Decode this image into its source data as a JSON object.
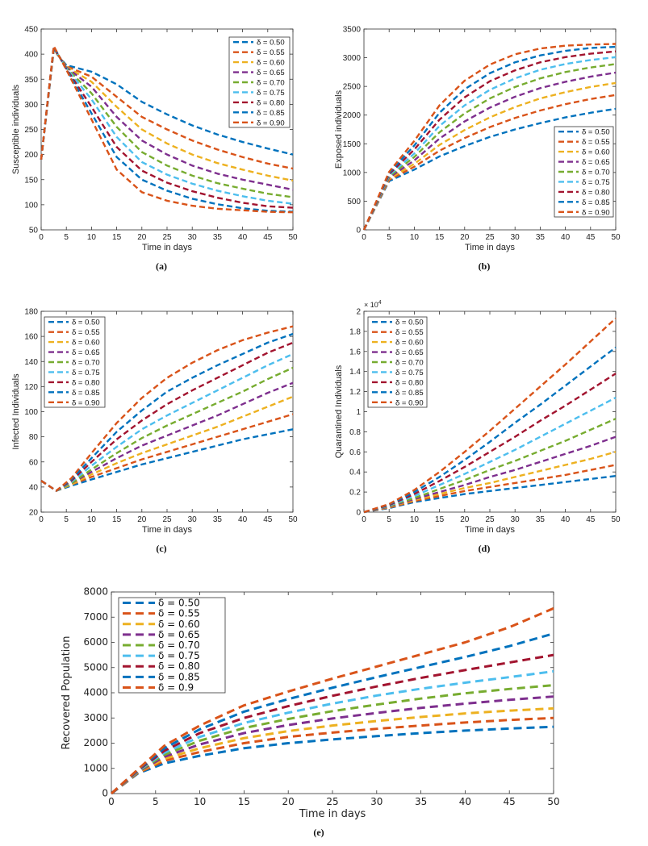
{
  "colors": [
    "#0072BD",
    "#D95319",
    "#EDB120",
    "#7E2F8E",
    "#77AC30",
    "#4DBEEE",
    "#A2142F",
    "#0072BD",
    "#D95319"
  ],
  "chart_data": [
    {
      "id": "a",
      "type": "line",
      "caption": "(a)",
      "xlabel": "Time in days",
      "ylabel": "Susceptible individuals",
      "xlim": [
        0,
        50
      ],
      "ylim": [
        50,
        450
      ],
      "xticks": [
        0,
        5,
        10,
        15,
        20,
        25,
        30,
        35,
        40,
        45,
        50
      ],
      "yticks": [
        50,
        100,
        150,
        200,
        250,
        300,
        350,
        400,
        450
      ],
      "legend_position": "top-right",
      "x": [
        0,
        2.5,
        5,
        10,
        15,
        20,
        25,
        30,
        35,
        40,
        45,
        50
      ],
      "series": [
        {
          "name": "δ = 0.50",
          "values": [
            190,
            408,
            378,
            365,
            340,
            305,
            280,
            258,
            240,
            225,
            212,
            200
          ]
        },
        {
          "name": "δ = 0.55",
          "values": [
            190,
            409,
            376,
            355,
            315,
            275,
            250,
            228,
            210,
            195,
            182,
            172
          ]
        },
        {
          "name": "δ = 0.60",
          "values": [
            190,
            410,
            375,
            345,
            295,
            250,
            222,
            200,
            183,
            170,
            158,
            148
          ]
        },
        {
          "name": "δ = 0.65",
          "values": [
            190,
            411,
            374,
            335,
            275,
            228,
            200,
            178,
            162,
            150,
            140,
            130
          ]
        },
        {
          "name": "δ = 0.70",
          "values": [
            190,
            412,
            373,
            322,
            255,
            205,
            178,
            158,
            143,
            132,
            122,
            115
          ]
        },
        {
          "name": "δ = 0.75",
          "values": [
            190,
            413,
            372,
            310,
            235,
            185,
            160,
            142,
            128,
            117,
            108,
            102
          ]
        },
        {
          "name": "δ = 0.80",
          "values": [
            190,
            414,
            371,
            295,
            215,
            168,
            144,
            127,
            114,
            104,
            97,
            94
          ]
        },
        {
          "name": "δ = 0.85",
          "values": [
            190,
            415,
            370,
            282,
            195,
            150,
            128,
            112,
            101,
            93,
            88,
            86
          ]
        },
        {
          "name": "δ = 0.90",
          "values": [
            190,
            416,
            369,
            270,
            170,
            125,
            108,
            98,
            92,
            89,
            86,
            85
          ]
        }
      ]
    },
    {
      "id": "b",
      "type": "line",
      "caption": "(b)",
      "xlabel": "Time in days",
      "ylabel": "Exposed individuals",
      "xlim": [
        0,
        50
      ],
      "ylim": [
        0,
        3500
      ],
      "xticks": [
        0,
        5,
        10,
        15,
        20,
        25,
        30,
        35,
        40,
        45,
        50
      ],
      "yticks": [
        0,
        500,
        1000,
        1500,
        2000,
        2500,
        3000,
        3500
      ],
      "legend_position": "bottom-right",
      "x": [
        0,
        5,
        10,
        15,
        20,
        25,
        30,
        35,
        40,
        45,
        50
      ],
      "series": [
        {
          "name": "δ = 0.50",
          "values": [
            0,
            850,
            1050,
            1280,
            1460,
            1620,
            1750,
            1860,
            1960,
            2040,
            2110
          ]
        },
        {
          "name": "δ = 0.55",
          "values": [
            0,
            870,
            1100,
            1380,
            1600,
            1790,
            1950,
            2080,
            2190,
            2280,
            2350
          ]
        },
        {
          "name": "δ = 0.60",
          "values": [
            0,
            890,
            1150,
            1480,
            1740,
            1960,
            2140,
            2290,
            2400,
            2490,
            2560
          ]
        },
        {
          "name": "δ = 0.65",
          "values": [
            0,
            910,
            1210,
            1590,
            1890,
            2130,
            2320,
            2470,
            2580,
            2670,
            2740
          ]
        },
        {
          "name": "δ = 0.70",
          "values": [
            0,
            930,
            1270,
            1700,
            2030,
            2290,
            2490,
            2640,
            2750,
            2830,
            2890
          ]
        },
        {
          "name": "δ = 0.75",
          "values": [
            0,
            950,
            1330,
            1810,
            2170,
            2440,
            2640,
            2790,
            2890,
            2960,
            3010
          ]
        },
        {
          "name": "δ = 0.80",
          "values": [
            0,
            970,
            1400,
            1920,
            2310,
            2590,
            2780,
            2920,
            3010,
            3070,
            3110
          ]
        },
        {
          "name": "δ = 0.85",
          "values": [
            0,
            990,
            1470,
            2040,
            2450,
            2730,
            2920,
            3040,
            3120,
            3170,
            3190
          ]
        },
        {
          "name": "δ = 0.90",
          "values": [
            0,
            1010,
            1550,
            2170,
            2600,
            2880,
            3060,
            3160,
            3210,
            3230,
            3240
          ]
        }
      ]
    },
    {
      "id": "c",
      "type": "line",
      "caption": "(c)",
      "xlabel": "Time in days",
      "ylabel": "Infected Individuals",
      "xlim": [
        0,
        50
      ],
      "ylim": [
        20,
        180
      ],
      "xticks": [
        0,
        5,
        10,
        15,
        20,
        25,
        30,
        35,
        40,
        45,
        50
      ],
      "yticks": [
        20,
        40,
        60,
        80,
        100,
        120,
        140,
        160,
        180
      ],
      "legend_position": "top-left",
      "x": [
        0,
        3,
        6,
        10,
        15,
        20,
        25,
        30,
        35,
        40,
        45,
        50
      ],
      "series": [
        {
          "name": "δ = 0.50",
          "values": [
            45,
            37,
            41,
            46,
            52,
            58,
            63,
            68,
            73,
            78,
            82,
            86
          ]
        },
        {
          "name": "δ = 0.55",
          "values": [
            45,
            37,
            42,
            48,
            55,
            62,
            68,
            74,
            80,
            86,
            92,
            98
          ]
        },
        {
          "name": "δ = 0.60",
          "values": [
            45,
            37,
            42,
            50,
            59,
            67,
            74,
            81,
            88,
            96,
            104,
            112
          ]
        },
        {
          "name": "δ = 0.65",
          "values": [
            45,
            37,
            43,
            52,
            63,
            73,
            81,
            89,
            97,
            106,
            115,
            123
          ]
        },
        {
          "name": "δ = 0.70",
          "values": [
            45,
            37,
            43,
            54,
            67,
            79,
            89,
            98,
            107,
            116,
            126,
            135
          ]
        },
        {
          "name": "δ = 0.75",
          "values": [
            45,
            37,
            44,
            57,
            72,
            86,
            97,
            107,
            117,
            127,
            137,
            146
          ]
        },
        {
          "name": "δ = 0.80",
          "values": [
            45,
            37,
            45,
            60,
            78,
            93,
            106,
            117,
            127,
            137,
            147,
            155
          ]
        },
        {
          "name": "δ = 0.85",
          "values": [
            45,
            37,
            46,
            63,
            84,
            101,
            116,
            127,
            137,
            146,
            155,
            162
          ]
        },
        {
          "name": "δ = 0.90",
          "values": [
            45,
            37,
            47,
            67,
            91,
            111,
            127,
            139,
            149,
            157,
            163,
            168
          ]
        }
      ]
    },
    {
      "id": "d",
      "type": "line",
      "caption": "(d)",
      "xlabel": "Time in days",
      "ylabel": "Quarantined Individuals",
      "exponent": "× 10",
      "exponent_power": "4",
      "xlim": [
        0,
        50
      ],
      "ylim": [
        0,
        2
      ],
      "xticks": [
        0,
        5,
        10,
        15,
        20,
        25,
        30,
        35,
        40,
        45,
        50
      ],
      "yticks": [
        0,
        0.2,
        0.4,
        0.6,
        0.8,
        1,
        1.2,
        1.4,
        1.6,
        1.8,
        2
      ],
      "legend_position": "top-left",
      "x": [
        0,
        5,
        10,
        15,
        20,
        25,
        30,
        35,
        40,
        45,
        50
      ],
      "series": [
        {
          "name": "δ = 0.50",
          "values": [
            0,
            0.04,
            0.1,
            0.14,
            0.18,
            0.21,
            0.24,
            0.27,
            0.3,
            0.33,
            0.36
          ]
        },
        {
          "name": "δ = 0.55",
          "values": [
            0,
            0.045,
            0.11,
            0.16,
            0.21,
            0.25,
            0.29,
            0.33,
            0.37,
            0.42,
            0.47
          ]
        },
        {
          "name": "δ = 0.60",
          "values": [
            0,
            0.05,
            0.12,
            0.18,
            0.24,
            0.29,
            0.35,
            0.41,
            0.47,
            0.53,
            0.6
          ]
        },
        {
          "name": "δ = 0.65",
          "values": [
            0,
            0.055,
            0.13,
            0.2,
            0.27,
            0.35,
            0.42,
            0.5,
            0.58,
            0.66,
            0.75
          ]
        },
        {
          "name": "δ = 0.70",
          "values": [
            0,
            0.06,
            0.14,
            0.23,
            0.32,
            0.42,
            0.51,
            0.61,
            0.71,
            0.82,
            0.93
          ]
        },
        {
          "name": "δ = 0.75",
          "values": [
            0,
            0.065,
            0.16,
            0.27,
            0.38,
            0.5,
            0.62,
            0.75,
            0.88,
            1.01,
            1.14
          ]
        },
        {
          "name": "δ = 0.80",
          "values": [
            0,
            0.07,
            0.18,
            0.31,
            0.45,
            0.6,
            0.75,
            0.91,
            1.06,
            1.22,
            1.38
          ]
        },
        {
          "name": "δ = 0.85",
          "values": [
            0,
            0.075,
            0.2,
            0.35,
            0.52,
            0.7,
            0.89,
            1.07,
            1.26,
            1.45,
            1.64
          ]
        },
        {
          "name": "δ = 0.90",
          "values": [
            0,
            0.08,
            0.22,
            0.4,
            0.6,
            0.81,
            1.03,
            1.25,
            1.47,
            1.7,
            1.93
          ]
        }
      ]
    },
    {
      "id": "e",
      "type": "line",
      "caption": "(e)",
      "xlabel": "Time in days",
      "ylabel": "Recovered Population",
      "xlim": [
        0,
        50
      ],
      "ylim": [
        0,
        8000
      ],
      "xticks": [
        0,
        5,
        10,
        15,
        20,
        25,
        30,
        35,
        40,
        45,
        50
      ],
      "yticks": [
        0,
        1000,
        2000,
        3000,
        4000,
        5000,
        6000,
        7000,
        8000
      ],
      "legend_position": "top-left",
      "x": [
        0,
        3,
        6,
        10,
        15,
        20,
        25,
        30,
        35,
        40,
        45,
        50
      ],
      "series": [
        {
          "name": "δ = 0.50",
          "values": [
            0,
            800,
            1200,
            1500,
            1800,
            2000,
            2150,
            2280,
            2400,
            2500,
            2580,
            2650
          ]
        },
        {
          "name": "δ = 0.55",
          "values": [
            0,
            820,
            1300,
            1650,
            2000,
            2250,
            2420,
            2570,
            2700,
            2820,
            2920,
            3000
          ]
        },
        {
          "name": "δ = 0.60",
          "values": [
            0,
            840,
            1380,
            1800,
            2200,
            2480,
            2700,
            2880,
            3040,
            3180,
            3290,
            3380
          ]
        },
        {
          "name": "δ = 0.65",
          "values": [
            0,
            860,
            1460,
            1950,
            2400,
            2720,
            2980,
            3200,
            3400,
            3570,
            3720,
            3850
          ]
        },
        {
          "name": "δ = 0.70",
          "values": [
            0,
            880,
            1540,
            2100,
            2600,
            2960,
            3270,
            3530,
            3770,
            3980,
            4150,
            4300
          ]
        },
        {
          "name": "δ = 0.75",
          "values": [
            0,
            900,
            1620,
            2250,
            2800,
            3210,
            3570,
            3890,
            4160,
            4400,
            4620,
            4850
          ]
        },
        {
          "name": "δ = 0.80",
          "values": [
            0,
            920,
            1700,
            2400,
            3000,
            3470,
            3880,
            4250,
            4590,
            4900,
            5200,
            5500
          ]
        },
        {
          "name": "δ = 0.85",
          "values": [
            0,
            940,
            1800,
            2550,
            3250,
            3750,
            4200,
            4620,
            5020,
            5420,
            5850,
            6350
          ]
        },
        {
          "name": "δ = 0.9",
          "values": [
            0,
            960,
            1900,
            2700,
            3500,
            4050,
            4560,
            5040,
            5520,
            6000,
            6600,
            7350
          ]
        }
      ]
    }
  ]
}
